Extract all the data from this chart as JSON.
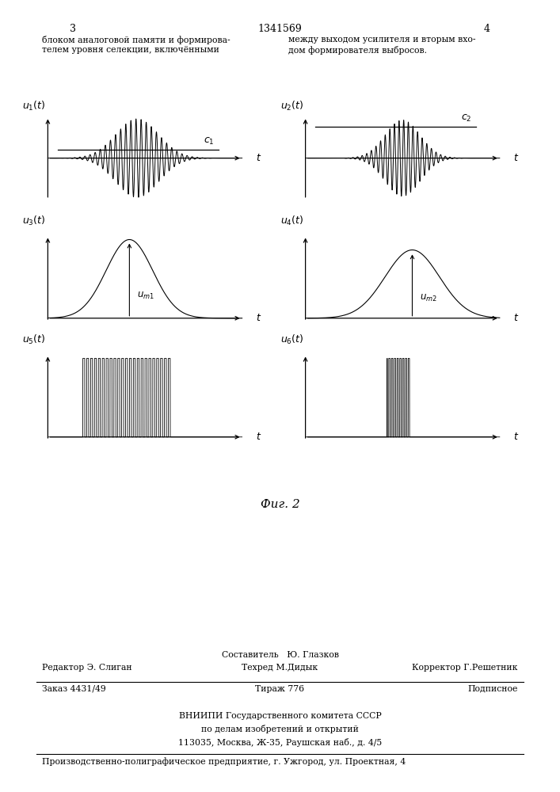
{
  "bg_color": "#ffffff",
  "page_width": 7.07,
  "page_height": 10.0,
  "header_text_left": "блоком аналоговой памяти и формирова-\nтелем уровня селекции, включённными",
  "header_text_right": "между выходом усилителя и вторым вхо-\nдом формирователя выбросов.",
  "page_num_left": "3",
  "page_num_center": "1341569",
  "page_num_right": "4",
  "fig_caption": "Фиг. 2",
  "footer_names": "Составитель   Ю. Глазков",
  "footer_editor": "Редактор Э. Слиган",
  "footer_tech": "Техред М.Дидык",
  "footer_corrector": "Корректор Г.Решетник",
  "footer_order": "Заказ 4431/49",
  "footer_tirazh": "Тираж 776",
  "footer_podp": "Подписное",
  "footer_vniip1": "ВНИИПИ Государственного комитета СССР",
  "footer_vniip2": "по делам изобретений и открытий",
  "footer_vniip3": "113035, Москва, Ж-35, Раушская наб., д. 4/5",
  "footer_factory": "Производственно-полиграфическое предприятие, г. Ужгород, ул. Проектная, 4"
}
